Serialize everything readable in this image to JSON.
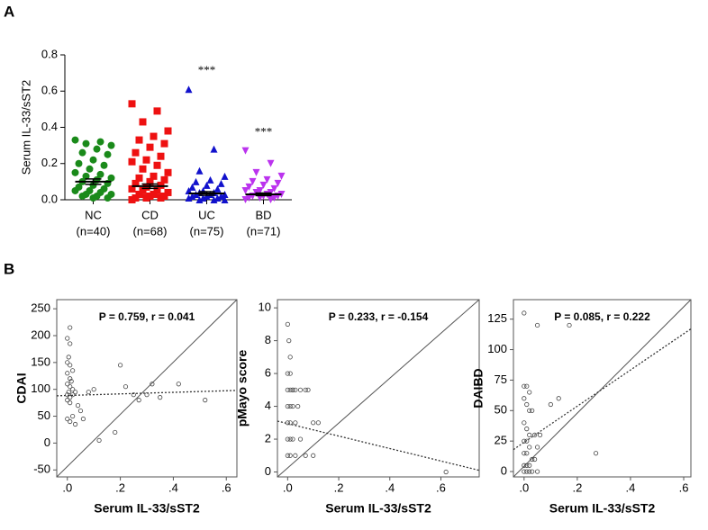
{
  "panel_labels": [
    "A",
    "B"
  ],
  "chart_data": [
    {
      "type": "strip",
      "ylabel": "Serum IL-33/sST2",
      "categories": [
        "NC",
        "CD",
        "UC",
        "BD"
      ],
      "sample_sizes": [
        "(n=40)",
        "(n=68)",
        "(n=75)",
        "(n=71)"
      ],
      "colors": [
        "#1a8a1a",
        "#ee1111",
        "#1111cc",
        "#bb33ee"
      ],
      "markers": [
        "circle",
        "square",
        "triangle",
        "triangle-down"
      ],
      "values": [
        [
          0.33,
          0.32,
          0.31,
          0.3,
          0.28,
          0.26,
          0.25,
          0.22,
          0.2,
          0.19,
          0.17,
          0.15,
          0.14,
          0.13,
          0.12,
          0.11,
          0.1,
          0.09,
          0.08,
          0.07,
          0.06,
          0.05,
          0.05,
          0.04,
          0.03,
          0.03,
          0.02,
          0.02,
          0.01,
          0.01
        ],
        [
          0.53,
          0.49,
          0.43,
          0.38,
          0.35,
          0.33,
          0.31,
          0.29,
          0.26,
          0.24,
          0.22,
          0.21,
          0.19,
          0.17,
          0.15,
          0.13,
          0.12,
          0.11,
          0.1,
          0.09,
          0.08,
          0.07,
          0.06,
          0.05,
          0.05,
          0.04,
          0.03,
          0.03,
          0.02,
          0.02,
          0.01,
          0.01,
          0.01,
          0.0
        ],
        [
          0.61,
          0.28,
          0.16,
          0.13,
          0.11,
          0.1,
          0.09,
          0.08,
          0.07,
          0.06,
          0.05,
          0.05,
          0.04,
          0.04,
          0.03,
          0.03,
          0.03,
          0.02,
          0.02,
          0.02,
          0.01,
          0.01,
          0.01,
          0.0,
          0.0,
          0.0
        ],
        [
          0.27,
          0.2,
          0.15,
          0.13,
          0.11,
          0.1,
          0.09,
          0.08,
          0.07,
          0.06,
          0.05,
          0.05,
          0.04,
          0.04,
          0.03,
          0.03,
          0.02,
          0.02,
          0.02,
          0.01,
          0.01,
          0.01,
          0.0,
          0.0
        ]
      ],
      "means": [
        0.1,
        0.075,
        0.035,
        0.03
      ],
      "sems": [
        0.015,
        0.012,
        0.01,
        0.007
      ],
      "significance": [
        null,
        null,
        "***",
        "***"
      ],
      "ylim": [
        0,
        0.8
      ],
      "yticks": [
        {
          "value": 0,
          "label": "0.0"
        },
        {
          "value": 0.2,
          "label": "0.2"
        },
        {
          "value": 0.4,
          "label": "0.4"
        },
        {
          "value": 0.6,
          "label": "0.6"
        },
        {
          "value": 0.8,
          "label": "0.8"
        }
      ]
    },
    {
      "type": "scatter",
      "annotation": "P = 0.759, r = 0.041",
      "xlabel": "Serum IL-33/sST2",
      "ylabel": "CDAI",
      "x": [
        0.01,
        0.0,
        0.01,
        0.005,
        0.0,
        0.01,
        0.02,
        0.0,
        0.01,
        0.015,
        0.0,
        0.01,
        0.02,
        0.005,
        0.0,
        0.01,
        0.03,
        0.02,
        0.0,
        0.01,
        0.04,
        0.05,
        0.02,
        0.0,
        0.01,
        0.03,
        0.06,
        0.08,
        0.1,
        0.12,
        0.18,
        0.2,
        0.22,
        0.25,
        0.27,
        0.3,
        0.32,
        0.35,
        0.42,
        0.52
      ],
      "y": [
        215,
        195,
        185,
        160,
        150,
        145,
        135,
        130,
        120,
        115,
        110,
        105,
        100,
        95,
        90,
        85,
        95,
        90,
        80,
        75,
        70,
        60,
        50,
        45,
        40,
        35,
        45,
        95,
        100,
        5,
        20,
        145,
        105,
        90,
        80,
        90,
        110,
        85,
        110,
        80
      ],
      "trend": {
        "x": [
          -0.04,
          0.64
        ],
        "y": [
          88,
          98
        ]
      },
      "xlim": [
        -0.04,
        0.64
      ],
      "ylim": [
        -63,
        267
      ],
      "xticks": [
        {
          "value": 0,
          "label": ".0"
        },
        {
          "value": 0.2,
          "label": ".2"
        },
        {
          "value": 0.4,
          "label": ".4"
        },
        {
          "value": 0.6,
          "label": ".6"
        }
      ],
      "yticks": [
        -50,
        0,
        50,
        100,
        150,
        200,
        250
      ]
    },
    {
      "type": "scatter",
      "annotation": "P = 0.233, r = -0.154",
      "xlabel": "Serum IL-33/sST2",
      "ylabel": "pMayo score",
      "x": [
        0.0,
        0.005,
        0.01,
        0.0,
        0.01,
        0.02,
        0.0,
        0.01,
        0.02,
        0.03,
        0.0,
        0.01,
        0.02,
        0.04,
        0.05,
        0.07,
        0.0,
        0.01,
        0.03,
        0.08,
        0.1,
        0.12,
        0.0,
        0.01,
        0.02,
        0.05,
        0.07,
        0.0,
        0.01,
        0.03,
        0.1,
        0.62
      ],
      "y": [
        9,
        8,
        7,
        6,
        6,
        5,
        5,
        5,
        5,
        5,
        4,
        4,
        4,
        4,
        5,
        5,
        3,
        3,
        3,
        5,
        3,
        3,
        2,
        2,
        2,
        2,
        1,
        1,
        1,
        1,
        1,
        0
      ],
      "trend": {
        "x": [
          -0.04,
          0.75
        ],
        "y": [
          3.1,
          0.1
        ]
      },
      "xlim": [
        -0.04,
        0.75
      ],
      "ylim": [
        -0.3,
        10.5
      ],
      "xticks": [
        {
          "value": 0,
          "label": ".0"
        },
        {
          "value": 0.2,
          "label": ".2"
        },
        {
          "value": 0.4,
          "label": ".4"
        },
        {
          "value": 0.6,
          "label": ".6"
        }
      ],
      "yticks": [
        0,
        2,
        4,
        6,
        8,
        10
      ]
    },
    {
      "type": "scatter",
      "annotation": "P = 0.085, r = 0.222",
      "xlabel": "Serum IL-33/sST2",
      "ylabel": "DAIBD",
      "x": [
        0.0,
        0.05,
        0.17,
        0.0,
        0.01,
        0.02,
        0.0,
        0.01,
        0.02,
        0.03,
        0.0,
        0.01,
        0.02,
        0.04,
        0.0,
        0.01,
        0.02,
        0.05,
        0.0,
        0.01,
        0.03,
        0.04,
        0.0,
        0.01,
        0.02,
        0.05,
        0.06,
        0.1,
        0.13,
        0.0,
        0.01,
        0.02,
        0.03,
        0.27
      ],
      "y": [
        130,
        120,
        120,
        70,
        70,
        65,
        60,
        55,
        50,
        50,
        40,
        35,
        30,
        30,
        25,
        25,
        20,
        20,
        15,
        15,
        10,
        10,
        5,
        5,
        5,
        0,
        30,
        55,
        60,
        0,
        0,
        0,
        0,
        15
      ],
      "trend": {
        "x": [
          -0.04,
          0.627
        ],
        "y": [
          18,
          117
        ]
      },
      "xlim": [
        -0.04,
        0.627
      ],
      "ylim": [
        -4.4,
        141
      ],
      "xticks": [
        {
          "value": 0,
          "label": ".0"
        },
        {
          "value": 0.2,
          "label": ".2"
        },
        {
          "value": 0.4,
          "label": ".4"
        },
        {
          "value": 0.6,
          "label": ".6"
        }
      ],
      "yticks": [
        0,
        25,
        50,
        75,
        100,
        125
      ]
    }
  ]
}
